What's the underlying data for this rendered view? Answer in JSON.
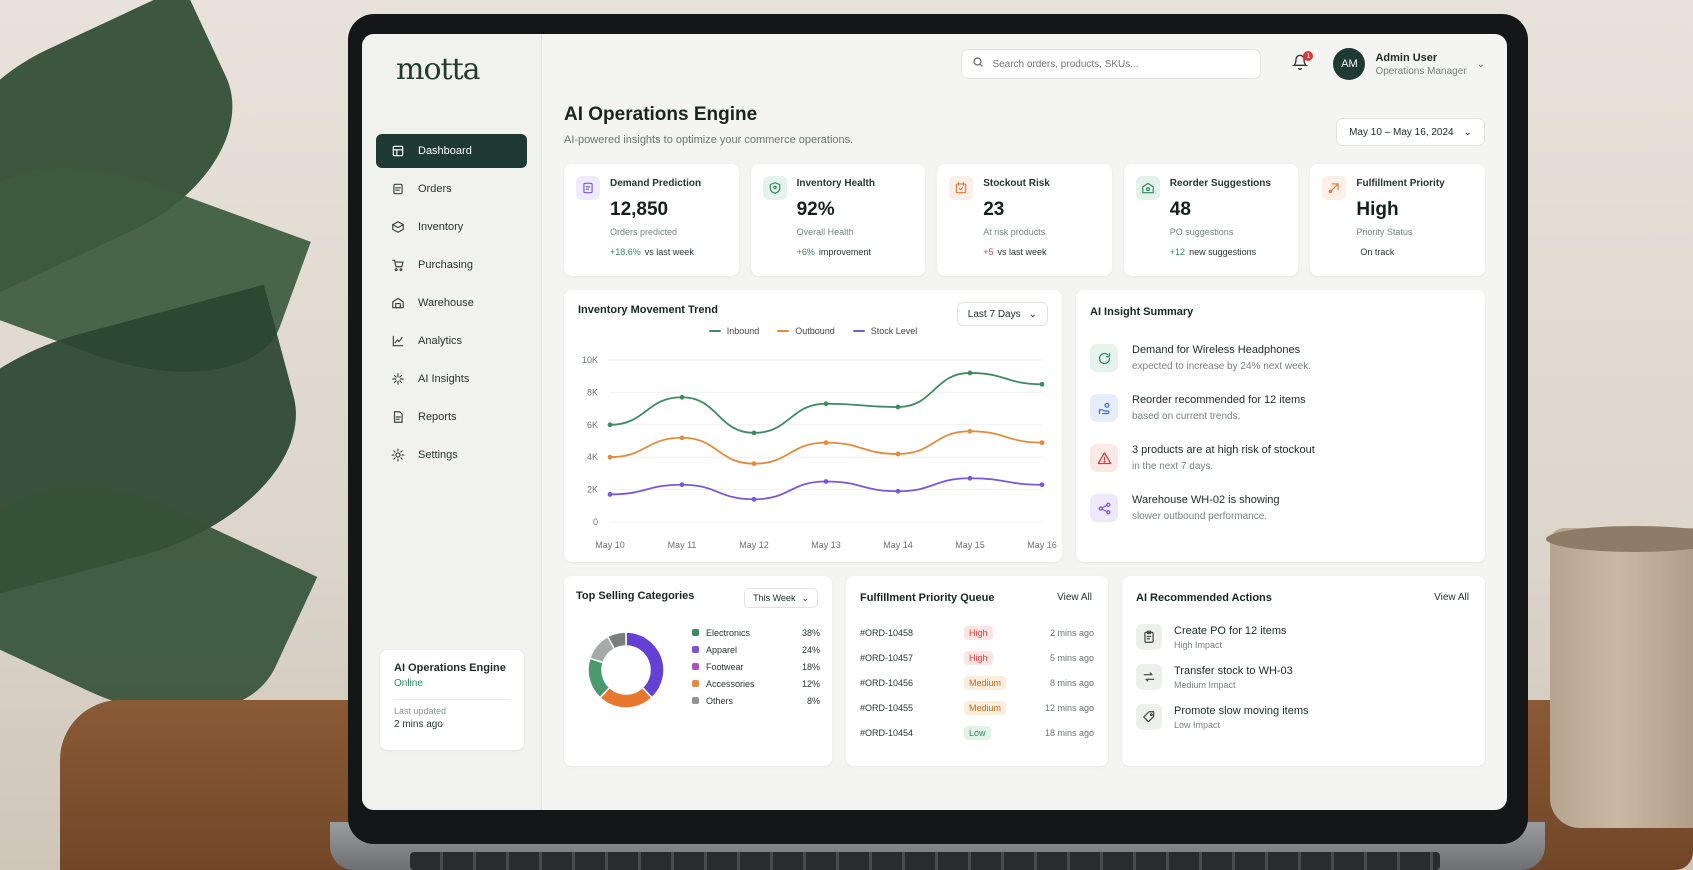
{
  "brand": {
    "logo": "motta"
  },
  "sidebar": {
    "items": [
      {
        "label": "Dashboard",
        "icon": "dashboard-icon",
        "active": true
      },
      {
        "label": "Orders",
        "icon": "orders-icon"
      },
      {
        "label": "Inventory",
        "icon": "inventory-icon"
      },
      {
        "label": "Purchasing",
        "icon": "cart-icon"
      },
      {
        "label": "Warehouse",
        "icon": "warehouse-icon"
      },
      {
        "label": "Analytics",
        "icon": "analytics-icon"
      },
      {
        "label": "AI Insights",
        "icon": "ai-insights-icon"
      },
      {
        "label": "Reports",
        "icon": "reports-icon"
      },
      {
        "label": "Settings",
        "icon": "gear-icon"
      }
    ],
    "engine_card": {
      "title": "AI Operations Engine",
      "status": "Online",
      "updated_label": "Last updated",
      "updated_value": "2 mins ago"
    }
  },
  "topbar": {
    "search_placeholder": "Search orders, products, SKUs...",
    "notification_count": "1",
    "user": {
      "initials": "AM",
      "name": "Admin User",
      "role": "Operations Manager"
    }
  },
  "header": {
    "title": "AI Operations Engine",
    "subtitle": "AI-powered insights to optimize your commerce operations.",
    "date_range": "May 10 – May 16, 2024"
  },
  "kpis": [
    {
      "label": "Demand Prediction",
      "value": "12,850",
      "sub": "Orders predicted",
      "delta_sign": "+",
      "delta_value": "18.6%",
      "delta_text": "vs last week",
      "trend": "up",
      "icon": "demand-icon",
      "color": "#7a5cd6"
    },
    {
      "label": "Inventory Health",
      "value": "92%",
      "sub": "Overall Health",
      "delta_sign": "+",
      "delta_value": "6%",
      "delta_text": "improvement",
      "trend": "up",
      "icon": "shield-icon",
      "color": "#2d8a5f"
    },
    {
      "label": "Stockout Risk",
      "value": "23",
      "sub": "At risk products",
      "delta_sign": "+",
      "delta_value": "5",
      "delta_text": "vs last week",
      "trend": "down",
      "icon": "stockout-icon",
      "color": "#e07a3a"
    },
    {
      "label": "Reorder Suggestions",
      "value": "48",
      "sub": "PO suggestions",
      "delta_sign": "+",
      "delta_value": "12",
      "delta_text": "new suggestions",
      "trend": "up",
      "icon": "reorder-icon",
      "color": "#2d8a5f"
    },
    {
      "label": "Fulfillment Priority",
      "value": "High",
      "sub": "Priority Status",
      "delta_sign": "",
      "delta_value": "",
      "delta_text": "On track",
      "trend": "none",
      "icon": "fulfillment-icon",
      "color": "#e07a3a"
    }
  ],
  "trend": {
    "title": "Inventory Movement Trend",
    "range": "Last 7 Days"
  },
  "chart_data": {
    "type": "line",
    "x": [
      "May 10",
      "May 11",
      "May 12",
      "May 13",
      "May 14",
      "May 15",
      "May 16"
    ],
    "ylim": [
      0,
      10000
    ],
    "yticks": [
      "0",
      "2K",
      "4K",
      "6K",
      "8K",
      "10K"
    ],
    "series": [
      {
        "name": "Inbound",
        "color": "#3f8a62",
        "values": [
          6000,
          7700,
          5500,
          7300,
          7100,
          9200,
          8500
        ]
      },
      {
        "name": "Outbound",
        "color": "#e38b3c",
        "values": [
          4000,
          5200,
          3600,
          4900,
          4200,
          5600,
          4900
        ]
      },
      {
        "name": "Stock Level",
        "color": "#7b57d8",
        "values": [
          1700,
          2300,
          1400,
          2500,
          1900,
          2700,
          2300
        ]
      }
    ]
  },
  "insights": {
    "title": "AI Insight Summary",
    "items": [
      {
        "title": "Demand for Wireless Headphones",
        "sub": "expected to increase by 24% next week.",
        "icon": "refresh-icon",
        "color": "#2d8a5f",
        "bg": "#e6f2ec"
      },
      {
        "title": "Reorder recommended for 12 items",
        "sub": "based on current trends.",
        "icon": "hand-coins-icon",
        "color": "#3f6fd1",
        "bg": "#e7eefb"
      },
      {
        "title": "3 products are at high risk of stockout",
        "sub": "in the next 7 days.",
        "icon": "warning-icon",
        "color": "#d64040",
        "bg": "#fbe9e7"
      },
      {
        "title": "Warehouse WH-02 is showing",
        "sub": "slower outbound performance.",
        "icon": "share-icon",
        "color": "#7b57d8",
        "bg": "#efeafb"
      }
    ]
  },
  "categories": {
    "title": "Top Selling Categories",
    "period": "This Week",
    "items": [
      {
        "name": "Electronics",
        "pct": "38%",
        "value": 38,
        "color": "#3f8a62"
      },
      {
        "name": "Apparel",
        "pct": "24%",
        "value": 24,
        "color": "#7b57d8"
      },
      {
        "name": "Footwear",
        "pct": "18%",
        "value": 18,
        "color": "#a855b8"
      },
      {
        "name": "Accessories",
        "pct": "12%",
        "value": 12,
        "color": "#e38b3c"
      },
      {
        "name": "Others",
        "pct": "8%",
        "value": 8,
        "color": "#8f9592"
      }
    ],
    "donut_segments": [
      {
        "value": 38,
        "color": "#6440d4"
      },
      {
        "value": 24,
        "color": "#e8782f"
      },
      {
        "value": 18,
        "color": "#4a9a70"
      },
      {
        "value": 12,
        "color": "#a5a9a7"
      },
      {
        "value": 8,
        "color": "#7a7f7c"
      }
    ]
  },
  "queue": {
    "title": "Fulfillment Priority Queue",
    "view_all": "View All",
    "rows": [
      {
        "id": "#ORD-10458",
        "priority": "High",
        "time": "2 mins ago",
        "fg": "#d64040",
        "bg": "#fbe5e3"
      },
      {
        "id": "#ORD-10457",
        "priority": "High",
        "time": "5 mins ago",
        "fg": "#d64040",
        "bg": "#fbe5e3"
      },
      {
        "id": "#ORD-10456",
        "priority": "Medium",
        "time": "8 mins ago",
        "fg": "#c26a1f",
        "bg": "#fbeedd"
      },
      {
        "id": "#ORD-10455",
        "priority": "Medium",
        "time": "12 mins ago",
        "fg": "#c26a1f",
        "bg": "#fbeedd"
      },
      {
        "id": "#ORD-10454",
        "priority": "Low",
        "time": "18 mins ago",
        "fg": "#2d8a5f",
        "bg": "#e3f2e9"
      }
    ]
  },
  "actions": {
    "title": "AI Recommended Actions",
    "view_all": "View All",
    "items": [
      {
        "title": "Create PO for 12 items",
        "sub": "High Impact",
        "icon": "clipboard-icon"
      },
      {
        "title": "Transfer stock to WH-03",
        "sub": "Medium Impact",
        "icon": "transfer-icon"
      },
      {
        "title": "Promote slow moving items",
        "sub": "Low Impact",
        "icon": "tag-icon"
      }
    ]
  }
}
